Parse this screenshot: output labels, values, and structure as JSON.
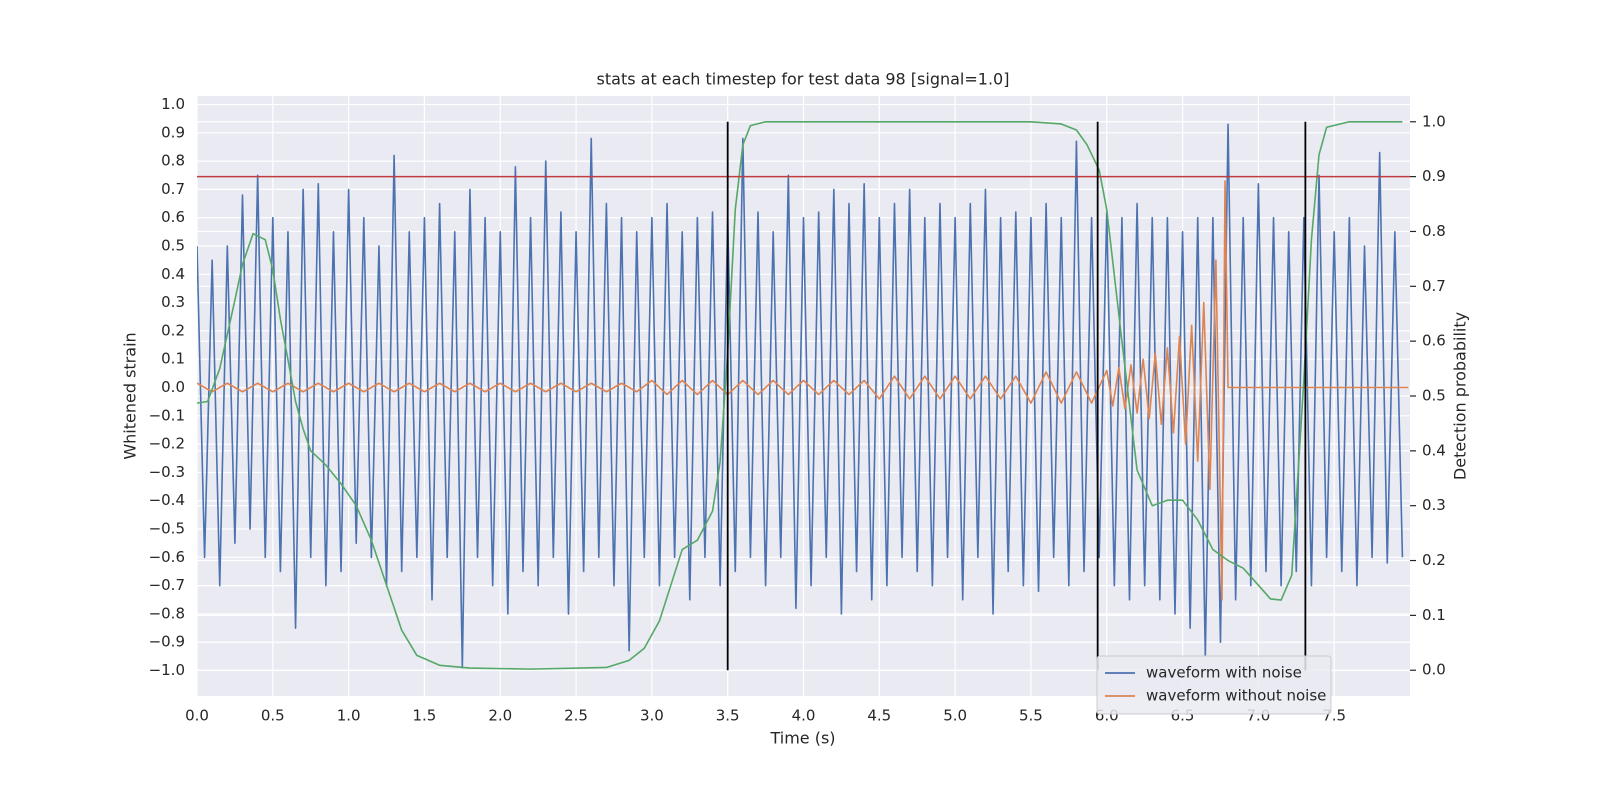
{
  "chart_data": {
    "type": "line",
    "title": "stats at each timestep for test data 98 [signal=1.0]",
    "x_label": "Time (s)",
    "y_label": "Whitened strain",
    "y2_label": "Detection probability",
    "xlim": [
      0,
      8.0
    ],
    "ylim": [
      -1.09,
      1.03
    ],
    "y2lim": [
      -0.047,
      1.047
    ],
    "xticks": [
      {
        "value": 0,
        "label": "0.0"
      },
      {
        "value": 0.5,
        "label": "0.5"
      },
      {
        "value": 1,
        "label": "1.0"
      },
      {
        "value": 1.5,
        "label": "1.5"
      },
      {
        "value": 2,
        "label": "2.0"
      },
      {
        "value": 2.5,
        "label": "2.5"
      },
      {
        "value": 3,
        "label": "3.0"
      },
      {
        "value": 3.5,
        "label": "3.5"
      },
      {
        "value": 4,
        "label": "4.0"
      },
      {
        "value": 4.5,
        "label": "4.5"
      },
      {
        "value": 5,
        "label": "5.0"
      },
      {
        "value": 5.5,
        "label": "5.5"
      },
      {
        "value": 6,
        "label": "6.0"
      },
      {
        "value": 6.5,
        "label": "6.5"
      },
      {
        "value": 7,
        "label": "7.0"
      },
      {
        "value": 7.5,
        "label": "7.5"
      }
    ],
    "yticks": [
      {
        "value": -1,
        "label": "−1.0"
      },
      {
        "value": -0.9,
        "label": "−0.9"
      },
      {
        "value": -0.8,
        "label": "−0.8"
      },
      {
        "value": -0.7,
        "label": "−0.7"
      },
      {
        "value": -0.6,
        "label": "−0.6"
      },
      {
        "value": -0.5,
        "label": "−0.5"
      },
      {
        "value": -0.4,
        "label": "−0.4"
      },
      {
        "value": -0.3,
        "label": "−0.3"
      },
      {
        "value": -0.2,
        "label": "−0.2"
      },
      {
        "value": -0.1,
        "label": "−0.1"
      },
      {
        "value": 0,
        "label": "0.0"
      },
      {
        "value": 0.1,
        "label": "0.1"
      },
      {
        "value": 0.2,
        "label": "0.2"
      },
      {
        "value": 0.3,
        "label": "0.3"
      },
      {
        "value": 0.4,
        "label": "0.4"
      },
      {
        "value": 0.5,
        "label": "0.5"
      },
      {
        "value": 0.6,
        "label": "0.6"
      },
      {
        "value": 0.7,
        "label": "0.7"
      },
      {
        "value": 0.8,
        "label": "0.8"
      },
      {
        "value": 0.9,
        "label": "0.9"
      },
      {
        "value": 1,
        "label": "1.0"
      }
    ],
    "y2ticks": [
      {
        "value": 0,
        "label": "0.0"
      },
      {
        "value": 0.1,
        "label": "0.1"
      },
      {
        "value": 0.2,
        "label": "0.2"
      },
      {
        "value": 0.3,
        "label": "0.3"
      },
      {
        "value": 0.4,
        "label": "0.4"
      },
      {
        "value": 0.5,
        "label": "0.5"
      },
      {
        "value": 0.6,
        "label": "0.6"
      },
      {
        "value": 0.7,
        "label": "0.7"
      },
      {
        "value": 0.8,
        "label": "0.8"
      },
      {
        "value": 0.9,
        "label": "0.9"
      },
      {
        "value": 1,
        "label": "1.0"
      }
    ],
    "grid": true,
    "legend": "lower right",
    "series": [
      {
        "name": "waveform with noise",
        "color": "#4c72b0",
        "x": [
          0,
          0.05,
          0.1,
          0.15,
          0.2,
          0.25,
          0.3,
          0.35,
          0.4,
          0.45,
          0.5,
          0.55,
          0.6,
          0.65,
          0.7,
          0.75,
          0.8,
          0.85,
          0.9,
          0.95,
          1,
          1.05,
          1.1,
          1.15,
          1.2,
          1.25,
          1.3,
          1.35,
          1.4,
          1.45,
          1.5,
          1.55,
          1.6,
          1.65,
          1.7,
          1.75,
          1.8,
          1.85,
          1.9,
          1.95,
          2,
          2.05,
          2.1,
          2.15,
          2.2,
          2.25,
          2.3,
          2.35,
          2.4,
          2.45,
          2.5,
          2.55,
          2.6,
          2.65,
          2.7,
          2.75,
          2.8,
          2.85,
          2.9,
          2.95,
          3,
          3.05,
          3.1,
          3.15,
          3.2,
          3.25,
          3.3,
          3.35,
          3.4,
          3.45,
          3.5,
          3.55,
          3.6,
          3.65,
          3.7,
          3.75,
          3.8,
          3.85,
          3.9,
          3.95,
          4,
          4.05,
          4.1,
          4.15,
          4.2,
          4.25,
          4.3,
          4.35,
          4.4,
          4.45,
          4.5,
          4.55,
          4.6,
          4.65,
          4.7,
          4.75,
          4.8,
          4.85,
          4.9,
          4.95,
          5,
          5.05,
          5.1,
          5.15,
          5.2,
          5.25,
          5.3,
          5.35,
          5.4,
          5.45,
          5.5,
          5.55,
          5.6,
          5.65,
          5.7,
          5.75,
          5.8,
          5.85,
          5.9,
          5.95,
          6,
          6.05,
          6.1,
          6.15,
          6.2,
          6.25,
          6.3,
          6.35,
          6.4,
          6.45,
          6.5,
          6.55,
          6.6,
          6.65,
          6.7,
          6.75,
          6.8,
          6.85,
          6.9,
          6.95,
          7,
          7.05,
          7.1,
          7.15,
          7.2,
          7.25,
          7.3,
          7.35,
          7.4,
          7.45,
          7.5,
          7.55,
          7.6,
          7.65,
          7.7,
          7.75,
          7.8,
          7.85,
          7.9,
          7.95
        ],
        "values": [
          0.5,
          -0.6,
          0.45,
          -0.7,
          0.5,
          -0.55,
          0.68,
          -0.5,
          0.75,
          -0.6,
          0.6,
          -0.65,
          0.55,
          -0.85,
          0.7,
          -0.6,
          0.72,
          -0.7,
          0.55,
          -0.65,
          0.7,
          -0.55,
          0.6,
          -0.6,
          0.5,
          -0.7,
          0.82,
          -0.65,
          0.55,
          -0.6,
          0.6,
          -0.75,
          0.65,
          -0.6,
          0.55,
          -0.99,
          0.7,
          -0.6,
          0.6,
          -0.7,
          0.55,
          -0.8,
          0.78,
          -0.65,
          0.6,
          -0.7,
          0.8,
          -0.6,
          0.62,
          -0.8,
          0.55,
          -0.65,
          0.88,
          -0.6,
          0.65,
          -0.7,
          0.6,
          -0.93,
          0.55,
          -0.6,
          0.6,
          -0.7,
          0.65,
          -0.6,
          0.55,
          -0.75,
          0.6,
          -0.6,
          0.62,
          -0.7,
          0.6,
          -0.65,
          0.88,
          -0.6,
          0.62,
          -0.7,
          0.55,
          -0.6,
          0.75,
          -0.78,
          0.6,
          -0.7,
          0.62,
          -0.6,
          0.7,
          -0.8,
          0.65,
          -0.65,
          0.72,
          -0.75,
          0.6,
          -0.7,
          0.65,
          -0.6,
          0.7,
          -0.65,
          0.6,
          -0.7,
          0.65,
          -0.6,
          0.6,
          -0.75,
          0.65,
          -0.6,
          0.7,
          -0.8,
          0.6,
          -0.65,
          0.62,
          -0.7,
          0.6,
          -0.72,
          0.65,
          -0.6,
          0.6,
          -0.7,
          0.87,
          -0.65,
          0.6,
          -0.6,
          0.62,
          -0.7,
          0.6,
          -0.75,
          0.65,
          -0.7,
          0.6,
          -0.75,
          0.6,
          -0.8,
          0.55,
          -0.85,
          0.6,
          -0.95,
          0.6,
          -0.9,
          0.93,
          -0.75,
          0.6,
          -0.7,
          0.72,
          -0.65,
          0.6,
          -0.7,
          0.55,
          -0.65,
          0.6,
          -0.7,
          0.75,
          -0.6,
          0.55,
          -0.65,
          0.6,
          -0.7,
          0.5,
          -0.6,
          0.83,
          -0.62,
          0.55,
          -0.6
        ]
      },
      {
        "name": "waveform without noise",
        "color": "#dd8452",
        "x": [
          0,
          0.1,
          0.2,
          0.3,
          0.4,
          0.5,
          0.6,
          0.7,
          0.8,
          0.9,
          1,
          1.1,
          1.2,
          1.3,
          1.4,
          1.5,
          1.6,
          1.7,
          1.8,
          1.9,
          2,
          2.1,
          2.2,
          2.3,
          2.4,
          2.5,
          2.6,
          2.7,
          2.8,
          2.9,
          3,
          3.1,
          3.2,
          3.3,
          3.4,
          3.5,
          3.6,
          3.7,
          3.8,
          3.9,
          4,
          4.1,
          4.2,
          4.3,
          4.4,
          4.5,
          4.6,
          4.7,
          4.8,
          4.9,
          5,
          5.1,
          5.2,
          5.3,
          5.4,
          5.5,
          5.6,
          5.7,
          5.8,
          5.9,
          6,
          6.04,
          6.08,
          6.12,
          6.16,
          6.2,
          6.24,
          6.28,
          6.32,
          6.36,
          6.4,
          6.44,
          6.48,
          6.52,
          6.56,
          6.6,
          6.64,
          6.68,
          6.72,
          6.76,
          6.78,
          6.8,
          7.99
        ],
        "values": [
          0.015,
          -0.015,
          0.015,
          -0.015,
          0.015,
          -0.015,
          0.015,
          -0.015,
          0.015,
          -0.015,
          0.015,
          -0.015,
          0.015,
          -0.015,
          0.015,
          -0.015,
          0.015,
          -0.015,
          0.015,
          -0.015,
          0.015,
          -0.015,
          0.015,
          -0.015,
          0.015,
          -0.015,
          0.015,
          -0.015,
          0.015,
          -0.015,
          0.025,
          -0.025,
          0.025,
          -0.025,
          0.025,
          -0.025,
          0.025,
          -0.025,
          0.025,
          -0.025,
          0.025,
          -0.025,
          0.025,
          -0.025,
          0.025,
          -0.04,
          0.04,
          -0.04,
          0.04,
          -0.04,
          0.04,
          -0.04,
          0.04,
          -0.04,
          0.04,
          -0.055,
          0.055,
          -0.055,
          0.055,
          -0.055,
          0.06,
          -0.065,
          0.07,
          -0.075,
          0.08,
          -0.09,
          0.1,
          -0.11,
          0.12,
          -0.13,
          0.14,
          -0.16,
          0.18,
          -0.2,
          0.22,
          -0.26,
          0.3,
          -0.36,
          0.45,
          -0.75,
          0.73,
          0,
          0
        ]
      },
      {
        "color": "#55a868",
        "axis": "y2",
        "x": [
          0,
          0.07,
          0.15,
          0.25,
          0.3,
          0.37,
          0.45,
          0.5,
          0.55,
          0.6,
          0.65,
          0.7,
          0.75,
          0.85,
          0.95,
          1.05,
          1.15,
          1.25,
          1.35,
          1.45,
          1.6,
          1.8,
          2.2,
          2.7,
          2.85,
          2.95,
          3.05,
          3.2,
          3.3,
          3.4,
          3.45,
          3.5,
          3.55,
          3.6,
          3.65,
          3.75,
          5.5,
          5.7,
          5.8,
          5.87,
          5.95,
          6,
          6.1,
          6.2,
          6.3,
          6.4,
          6.5,
          6.6,
          6.7,
          6.8,
          6.9,
          7,
          7.08,
          7.15,
          7.22,
          7.3,
          7.35,
          7.4,
          7.45,
          7.6,
          7.95
        ],
        "values": [
          0.487,
          0.49,
          0.55,
          0.675,
          0.74,
          0.796,
          0.785,
          0.73,
          0.64,
          0.566,
          0.49,
          0.44,
          0.4,
          0.374,
          0.34,
          0.3,
          0.237,
          0.155,
          0.073,
          0.027,
          0.009,
          0.004,
          0.002,
          0.005,
          0.018,
          0.04,
          0.09,
          0.22,
          0.237,
          0.29,
          0.38,
          0.58,
          0.84,
          0.958,
          0.993,
          1,
          1,
          0.996,
          0.985,
          0.958,
          0.912,
          0.84,
          0.6,
          0.365,
          0.3,
          0.31,
          0.31,
          0.274,
          0.22,
          0.2,
          0.186,
          0.155,
          0.13,
          0.128,
          0.173,
          0.53,
          0.785,
          0.94,
          0.99,
          1,
          1
        ]
      }
    ],
    "threshold": {
      "value": 0.9,
      "axis": "y2",
      "color": "#c03d3e"
    },
    "vlines": {
      "x": [
        3.5,
        5.94,
        7.31
      ],
      "ymin": 0,
      "ymax": 1,
      "axis": "y2",
      "color": "#000000"
    }
  }
}
